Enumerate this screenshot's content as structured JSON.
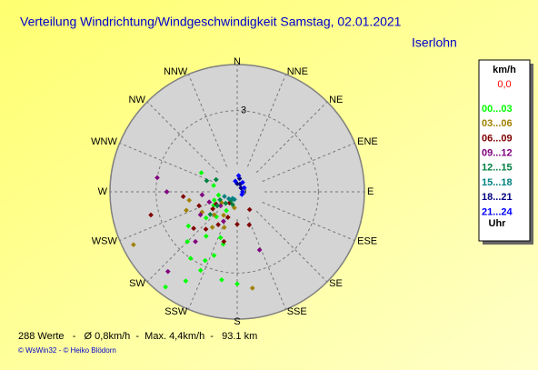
{
  "chart_data": {
    "type": "polar-scatter",
    "title": "Verteilung Windrichtung/Windgeschwindigkeit  Samstag, 02.01.2021",
    "location": "Iserlohn",
    "directions": [
      "N",
      "NNE",
      "NE",
      "ENE",
      "E",
      "ESE",
      "SE",
      "SSE",
      "S",
      "SSW",
      "SW",
      "WSW",
      "W",
      "WNW",
      "NW",
      "NNW"
    ],
    "rlim": [
      0,
      4.7
    ],
    "rticks": [
      0,
      3
    ],
    "legend_title": "km/h",
    "calm": "0,0",
    "legend_unit": "Uhr",
    "series": [
      {
        "name": "00...03",
        "color": "#00ff00",
        "theta": [
          217,
          210,
          205,
          200,
          215,
          195,
          225,
          190,
          180,
          200,
          230,
          220,
          210,
          240,
          235,
          205,
          215,
          250,
          260,
          298,
          285
        ],
        "r": [
          4.4,
          3.8,
          3.2,
          2.5,
          3.0,
          2.0,
          2.6,
          3.3,
          3.4,
          1.8,
          1.5,
          1.2,
          0.8,
          1.0,
          2.2,
          2.8,
          2.0,
          0.9,
          0.7,
          1.5,
          0.9
        ]
      },
      {
        "name": "03...06",
        "color": "#a08000",
        "theta": [
          243,
          225,
          240,
          210,
          250,
          235,
          200,
          190,
          260,
          215,
          171
        ],
        "r": [
          4.3,
          1.2,
          1.5,
          1.0,
          2.0,
          0.7,
          1.4,
          0.6,
          1.8,
          1.6,
          3.6
        ]
      },
      {
        "name": "06...09",
        "color": "#800000",
        "theta": [
          255,
          230,
          210,
          240,
          200,
          220,
          250,
          195,
          180,
          160,
          265,
          235,
          215,
          145
        ],
        "r": [
          3.3,
          2.1,
          1.4,
          0.9,
          1.0,
          1.8,
          1.5,
          1.9,
          1.2,
          1.3,
          2.0,
          1.1,
          0.5,
          0.8
        ]
      },
      {
        "name": "09...12",
        "color": "#800080",
        "theta": [
          221,
          270,
          280,
          265,
          238,
          220,
          250,
          159,
          230,
          205
        ],
        "r": [
          3.9,
          2.6,
          3.0,
          1.3,
          1.6,
          2.4,
          1.1,
          2.3,
          0.8,
          1.2
        ]
      },
      {
        "name": "12...15",
        "color": "#008040",
        "theta": [
          225,
          235,
          215,
          245,
          200,
          300,
          290,
          230
        ],
        "r": [
          0.6,
          0.9,
          0.4,
          0.7,
          0.5,
          0.9,
          1.2,
          1.3
        ]
      },
      {
        "name": "15...18",
        "color": "#008080",
        "theta": [
          230,
          215,
          250,
          200
        ],
        "r": [
          0.4,
          0.3,
          0.5,
          0.3
        ]
      },
      {
        "name": "18...21",
        "color": "#000080",
        "theta": [
          0,
          20,
          45,
          10
        ],
        "r": [
          0.3,
          0.3,
          0.2,
          0.5
        ]
      },
      {
        "name": "21...24",
        "color": "#0000ff",
        "theta": [
          350,
          30,
          60,
          90,
          120,
          5
        ],
        "r": [
          0.4,
          0.4,
          0.3,
          0.2,
          0.2,
          0.6
        ]
      }
    ],
    "footer": "288 Werte   -   Ø 0,8km/h  -  Max. 4,4km/h  -   93.1 km",
    "credit": "© WsWin32  -  © Heiko Blödorn"
  }
}
